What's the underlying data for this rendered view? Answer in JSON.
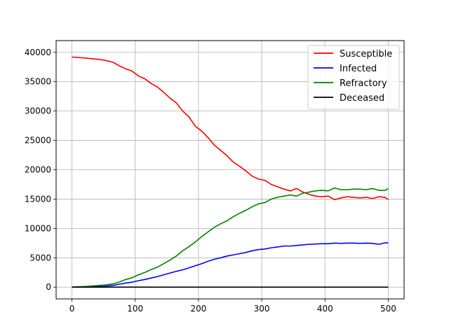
{
  "chart_data": {
    "type": "line",
    "title": "",
    "xlabel": "",
    "ylabel": "",
    "xlim": [
      -25,
      525
    ],
    "ylim": [
      -2000,
      42000
    ],
    "x_ticks": [
      0,
      100,
      200,
      300,
      400,
      500
    ],
    "y_ticks": [
      0,
      5000,
      10000,
      15000,
      20000,
      25000,
      30000,
      35000,
      40000
    ],
    "x_tick_labels": [
      "0",
      "100",
      "200",
      "300",
      "400",
      "500"
    ],
    "y_tick_labels": [
      "0",
      "5000",
      "10000",
      "15000",
      "20000",
      "25000",
      "30000",
      "35000",
      "40000"
    ],
    "grid": true,
    "legend_position": "top-right",
    "series": [
      {
        "name": "Susceptible",
        "color": "#ff0000",
        "points": [
          [
            0,
            39200
          ],
          [
            25,
            39000
          ],
          [
            50,
            38700
          ],
          [
            65,
            38300
          ],
          [
            75,
            37700
          ],
          [
            85,
            37200
          ],
          [
            95,
            36800
          ],
          [
            105,
            36000
          ],
          [
            115,
            35500
          ],
          [
            125,
            34700
          ],
          [
            135,
            34100
          ],
          [
            145,
            33200
          ],
          [
            155,
            32200
          ],
          [
            165,
            31400
          ],
          [
            175,
            30000
          ],
          [
            185,
            29000
          ],
          [
            195,
            27400
          ],
          [
            205,
            26600
          ],
          [
            215,
            25500
          ],
          [
            225,
            24200
          ],
          [
            235,
            23300
          ],
          [
            245,
            22400
          ],
          [
            255,
            21300
          ],
          [
            265,
            20600
          ],
          [
            275,
            19800
          ],
          [
            285,
            18900
          ],
          [
            295,
            18400
          ],
          [
            305,
            18200
          ],
          [
            315,
            17500
          ],
          [
            325,
            17100
          ],
          [
            335,
            16700
          ],
          [
            345,
            16400
          ],
          [
            355,
            16800
          ],
          [
            365,
            16200
          ],
          [
            375,
            15800
          ],
          [
            385,
            15500
          ],
          [
            395,
            15400
          ],
          [
            405,
            15500
          ],
          [
            415,
            14900
          ],
          [
            425,
            15200
          ],
          [
            435,
            15400
          ],
          [
            445,
            15300
          ],
          [
            455,
            15200
          ],
          [
            465,
            15300
          ],
          [
            475,
            15100
          ],
          [
            485,
            15400
          ],
          [
            495,
            15300
          ],
          [
            500,
            14900
          ]
        ]
      },
      {
        "name": "Infected",
        "color": "#0000ff",
        "points": [
          [
            0,
            0
          ],
          [
            25,
            50
          ],
          [
            50,
            150
          ],
          [
            65,
            300
          ],
          [
            75,
            500
          ],
          [
            85,
            700
          ],
          [
            95,
            850
          ],
          [
            105,
            1100
          ],
          [
            115,
            1300
          ],
          [
            125,
            1550
          ],
          [
            135,
            1800
          ],
          [
            145,
            2100
          ],
          [
            155,
            2400
          ],
          [
            165,
            2700
          ],
          [
            175,
            2950
          ],
          [
            185,
            3300
          ],
          [
            195,
            3650
          ],
          [
            205,
            4000
          ],
          [
            215,
            4400
          ],
          [
            225,
            4750
          ],
          [
            235,
            5000
          ],
          [
            245,
            5300
          ],
          [
            255,
            5500
          ],
          [
            265,
            5700
          ],
          [
            275,
            5900
          ],
          [
            285,
            6200
          ],
          [
            295,
            6400
          ],
          [
            305,
            6500
          ],
          [
            315,
            6700
          ],
          [
            325,
            6850
          ],
          [
            335,
            7000
          ],
          [
            345,
            7000
          ],
          [
            355,
            7100
          ],
          [
            365,
            7200
          ],
          [
            375,
            7300
          ],
          [
            385,
            7350
          ],
          [
            395,
            7400
          ],
          [
            405,
            7400
          ],
          [
            415,
            7500
          ],
          [
            425,
            7450
          ],
          [
            435,
            7500
          ],
          [
            445,
            7500
          ],
          [
            455,
            7450
          ],
          [
            465,
            7500
          ],
          [
            475,
            7450
          ],
          [
            485,
            7300
          ],
          [
            495,
            7550
          ],
          [
            500,
            7550
          ]
        ]
      },
      {
        "name": "Refractory",
        "color": "#008000",
        "points": [
          [
            0,
            0
          ],
          [
            25,
            150
          ],
          [
            50,
            350
          ],
          [
            65,
            550
          ],
          [
            75,
            900
          ],
          [
            85,
            1300
          ],
          [
            95,
            1600
          ],
          [
            105,
            2100
          ],
          [
            115,
            2500
          ],
          [
            125,
            3000
          ],
          [
            135,
            3400
          ],
          [
            145,
            4000
          ],
          [
            155,
            4600
          ],
          [
            165,
            5300
          ],
          [
            175,
            6200
          ],
          [
            185,
            6900
          ],
          [
            195,
            7700
          ],
          [
            205,
            8600
          ],
          [
            215,
            9400
          ],
          [
            225,
            10200
          ],
          [
            235,
            10800
          ],
          [
            245,
            11300
          ],
          [
            255,
            12000
          ],
          [
            265,
            12600
          ],
          [
            275,
            13100
          ],
          [
            285,
            13700
          ],
          [
            295,
            14200
          ],
          [
            305,
            14400
          ],
          [
            315,
            15000
          ],
          [
            325,
            15300
          ],
          [
            335,
            15500
          ],
          [
            345,
            15700
          ],
          [
            355,
            15500
          ],
          [
            365,
            16000
          ],
          [
            375,
            16200
          ],
          [
            385,
            16400
          ],
          [
            395,
            16500
          ],
          [
            405,
            16400
          ],
          [
            415,
            16900
          ],
          [
            425,
            16600
          ],
          [
            435,
            16600
          ],
          [
            445,
            16700
          ],
          [
            455,
            16700
          ],
          [
            465,
            16600
          ],
          [
            475,
            16800
          ],
          [
            485,
            16500
          ],
          [
            495,
            16500
          ],
          [
            500,
            16800
          ]
        ]
      },
      {
        "name": "Deceased",
        "color": "#000000",
        "points": [
          [
            0,
            0
          ],
          [
            500,
            0
          ]
        ]
      }
    ]
  }
}
